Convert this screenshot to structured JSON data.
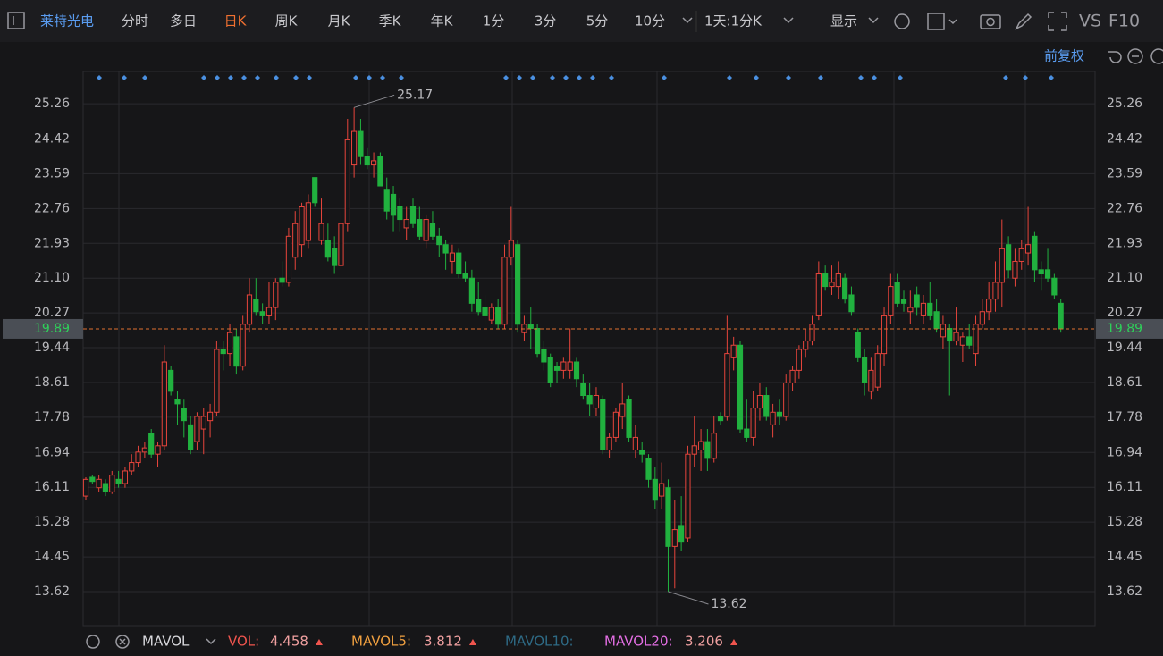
{
  "toolbar": {
    "stock_name": "莱特光电",
    "periods": [
      "分时",
      "多日",
      "日K",
      "周K",
      "月K",
      "季K",
      "年K",
      "1分",
      "3分",
      "5分",
      "10分"
    ],
    "active_period": 2,
    "period_selector": "1天:1分K",
    "display": "显示",
    "vs": "VS",
    "f10": "F10"
  },
  "adjust": "前复权",
  "chart_data": {
    "type": "candlestick",
    "candles": [
      [
        15.9,
        16.35,
        15.8,
        16.3
      ],
      [
        16.35,
        16.4,
        16.2,
        16.25
      ],
      [
        16.1,
        16.4,
        16.0,
        16.3
      ],
      [
        16.2,
        16.3,
        15.9,
        16.0
      ],
      [
        16.0,
        16.5,
        15.95,
        16.4
      ],
      [
        16.3,
        16.5,
        16.1,
        16.2
      ],
      [
        16.2,
        16.6,
        16.1,
        16.5
      ],
      [
        16.5,
        16.9,
        16.4,
        16.7
      ],
      [
        16.7,
        17.1,
        16.6,
        16.95
      ],
      [
        16.95,
        17.2,
        16.8,
        17.05
      ],
      [
        17.4,
        17.5,
        16.8,
        16.9
      ],
      [
        16.9,
        17.2,
        16.6,
        17.1
      ],
      [
        17.1,
        19.5,
        17.0,
        19.1
      ],
      [
        18.9,
        19.0,
        18.3,
        18.4
      ],
      [
        18.2,
        18.4,
        17.6,
        18.1
      ],
      [
        18.0,
        18.2,
        17.3,
        17.7
      ],
      [
        17.6,
        17.8,
        16.9,
        17.0
      ],
      [
        17.2,
        17.9,
        17.0,
        17.8
      ],
      [
        17.5,
        18.0,
        16.9,
        17.8
      ],
      [
        17.7,
        18.1,
        17.3,
        17.9
      ],
      [
        17.9,
        19.6,
        17.8,
        19.4
      ],
      [
        19.4,
        19.6,
        18.9,
        19.3
      ],
      [
        19.3,
        20.0,
        19.0,
        19.8
      ],
      [
        19.7,
        19.9,
        18.8,
        19.0
      ],
      [
        19.0,
        20.2,
        18.9,
        20.0
      ],
      [
        20.0,
        21.1,
        19.8,
        20.7
      ],
      [
        20.6,
        21.1,
        20.2,
        20.3
      ],
      [
        20.3,
        20.5,
        20.0,
        20.2
      ],
      [
        20.2,
        21.0,
        20.0,
        20.4
      ],
      [
        20.4,
        21.1,
        20.1,
        21.0
      ],
      [
        21.1,
        21.5,
        20.9,
        21.0
      ],
      [
        21.0,
        22.3,
        20.9,
        22.1
      ],
      [
        21.6,
        22.7,
        21.3,
        22.4
      ],
      [
        21.9,
        22.9,
        21.6,
        22.8
      ],
      [
        22.0,
        23.1,
        21.8,
        22.9
      ],
      [
        23.5,
        23.5,
        22.8,
        22.9
      ],
      [
        22.0,
        23.0,
        21.9,
        22.4
      ],
      [
        22.0,
        22.4,
        21.5,
        21.6
      ],
      [
        21.8,
        22.1,
        21.2,
        21.4
      ],
      [
        21.4,
        22.7,
        21.3,
        22.4
      ],
      [
        22.4,
        24.9,
        22.2,
        24.4
      ],
      [
        23.8,
        25.17,
        23.5,
        24.6
      ],
      [
        24.6,
        24.9,
        23.8,
        24.0
      ],
      [
        24.0,
        24.2,
        23.7,
        23.8
      ],
      [
        23.8,
        24.1,
        23.5,
        23.9
      ],
      [
        24.0,
        24.1,
        23.3,
        23.3
      ],
      [
        23.2,
        23.5,
        22.5,
        22.7
      ],
      [
        23.1,
        23.3,
        22.2,
        22.6
      ],
      [
        22.8,
        23.0,
        22.2,
        22.5
      ],
      [
        22.3,
        22.8,
        22.0,
        22.5
      ],
      [
        22.8,
        23.0,
        22.3,
        22.4
      ],
      [
        22.5,
        22.8,
        22.0,
        22.1
      ],
      [
        22.0,
        22.6,
        21.8,
        22.5
      ],
      [
        22.4,
        22.7,
        22.0,
        22.1
      ],
      [
        22.1,
        22.3,
        21.6,
        21.9
      ],
      [
        21.9,
        22.0,
        21.3,
        21.7
      ],
      [
        21.5,
        21.9,
        21.2,
        21.7
      ],
      [
        21.7,
        21.8,
        21.1,
        21.2
      ],
      [
        21.2,
        21.5,
        21.0,
        21.1
      ],
      [
        21.1,
        21.3,
        20.3,
        20.5
      ],
      [
        20.6,
        21.0,
        20.2,
        20.3
      ],
      [
        20.4,
        20.7,
        20.0,
        20.2
      ],
      [
        20.1,
        20.5,
        20.0,
        20.4
      ],
      [
        20.4,
        20.6,
        19.9,
        20.0
      ],
      [
        20.0,
        21.9,
        19.9,
        21.6
      ],
      [
        21.6,
        22.8,
        21.4,
        22.0
      ],
      [
        21.9,
        22.0,
        19.8,
        20.0
      ],
      [
        19.8,
        20.2,
        19.6,
        20.0
      ],
      [
        20.0,
        20.4,
        19.4,
        19.9
      ],
      [
        19.9,
        20.0,
        19.2,
        19.3
      ],
      [
        19.4,
        19.6,
        18.9,
        19.1
      ],
      [
        19.2,
        19.3,
        18.5,
        18.6
      ],
      [
        19.0,
        19.1,
        18.6,
        18.9
      ],
      [
        18.9,
        19.2,
        18.7,
        19.1
      ],
      [
        18.9,
        19.9,
        18.7,
        19.1
      ],
      [
        19.1,
        19.2,
        18.5,
        18.7
      ],
      [
        18.6,
        18.8,
        18.2,
        18.3
      ],
      [
        18.3,
        18.6,
        17.8,
        18.1
      ],
      [
        18.0,
        18.5,
        17.8,
        18.3
      ],
      [
        18.2,
        18.3,
        16.9,
        17.0
      ],
      [
        17.0,
        17.4,
        16.8,
        17.3
      ],
      [
        17.3,
        18.0,
        17.2,
        17.9
      ],
      [
        17.8,
        18.6,
        17.5,
        18.1
      ],
      [
        18.2,
        18.3,
        17.2,
        17.3
      ],
      [
        17.0,
        17.6,
        16.8,
        17.3
      ],
      [
        17.0,
        17.2,
        16.7,
        16.9
      ],
      [
        16.8,
        16.9,
        16.1,
        16.3
      ],
      [
        16.3,
        16.6,
        15.6,
        15.8
      ],
      [
        15.9,
        16.7,
        15.6,
        16.2
      ],
      [
        16.1,
        16.3,
        13.62,
        14.7
      ],
      [
        14.7,
        15.8,
        13.7,
        15.1
      ],
      [
        15.2,
        15.9,
        14.6,
        14.8
      ],
      [
        14.9,
        17.1,
        14.8,
        16.9
      ],
      [
        16.9,
        17.8,
        16.6,
        17.1
      ],
      [
        17.0,
        17.5,
        16.5,
        17.2
      ],
      [
        17.2,
        17.5,
        16.5,
        16.8
      ],
      [
        16.8,
        17.8,
        16.7,
        17.4
      ],
      [
        17.8,
        17.9,
        17.6,
        17.7
      ],
      [
        17.8,
        20.2,
        17.7,
        19.3
      ],
      [
        19.2,
        19.7,
        18.9,
        19.5
      ],
      [
        19.5,
        19.6,
        17.4,
        17.5
      ],
      [
        17.5,
        18.2,
        17.2,
        17.3
      ],
      [
        17.3,
        18.4,
        17.1,
        18.0
      ],
      [
        18.0,
        18.6,
        17.7,
        18.3
      ],
      [
        18.3,
        18.5,
        17.7,
        17.8
      ],
      [
        17.6,
        18.1,
        17.3,
        17.9
      ],
      [
        17.9,
        18.2,
        17.6,
        17.8
      ],
      [
        17.8,
        18.8,
        17.7,
        18.6
      ],
      [
        18.6,
        19.0,
        18.4,
        18.9
      ],
      [
        18.9,
        19.5,
        18.7,
        19.4
      ],
      [
        19.4,
        19.9,
        19.2,
        19.6
      ],
      [
        19.6,
        20.2,
        19.5,
        20.0
      ],
      [
        20.2,
        21.5,
        20.1,
        21.2
      ],
      [
        21.2,
        21.4,
        20.8,
        20.9
      ],
      [
        20.9,
        21.4,
        20.7,
        21.0
      ],
      [
        20.9,
        21.5,
        20.6,
        21.2
      ],
      [
        21.1,
        21.2,
        20.5,
        20.6
      ],
      [
        20.7,
        20.9,
        20.2,
        20.3
      ],
      [
        19.8,
        19.9,
        19.1,
        19.2
      ],
      [
        19.2,
        19.4,
        18.3,
        18.6
      ],
      [
        18.4,
        19.2,
        18.2,
        18.9
      ],
      [
        18.5,
        19.5,
        18.4,
        19.3
      ],
      [
        19.3,
        20.4,
        19.0,
        20.2
      ],
      [
        20.2,
        21.2,
        20.0,
        20.9
      ],
      [
        21.0,
        21.2,
        20.4,
        20.5
      ],
      [
        20.6,
        20.8,
        20.3,
        20.5
      ],
      [
        20.3,
        20.8,
        20.0,
        20.4
      ],
      [
        20.7,
        20.9,
        20.2,
        20.4
      ],
      [
        20.2,
        20.7,
        20.0,
        20.5
      ],
      [
        20.5,
        21.0,
        20.1,
        20.2
      ],
      [
        20.3,
        20.6,
        19.8,
        19.9
      ],
      [
        19.7,
        20.2,
        19.4,
        20.0
      ],
      [
        19.9,
        20.0,
        18.3,
        19.6
      ],
      [
        19.6,
        20.4,
        19.5,
        19.8
      ],
      [
        19.5,
        19.8,
        19.1,
        19.7
      ],
      [
        19.7,
        20.0,
        19.4,
        19.5
      ],
      [
        19.3,
        20.2,
        19.0,
        20.0
      ],
      [
        20.0,
        20.6,
        19.9,
        20.3
      ],
      [
        20.3,
        21.0,
        20.1,
        20.6
      ],
      [
        20.6,
        21.5,
        20.3,
        21.0
      ],
      [
        21.0,
        22.5,
        20.4,
        21.8
      ],
      [
        21.9,
        22.1,
        21.1,
        21.3
      ],
      [
        21.1,
        21.8,
        20.9,
        21.5
      ],
      [
        21.5,
        22.0,
        21.3,
        21.8
      ],
      [
        21.7,
        22.8,
        21.4,
        21.9
      ],
      [
        22.1,
        22.2,
        21.0,
        21.3
      ],
      [
        21.3,
        21.5,
        20.8,
        21.2
      ],
      [
        21.3,
        21.8,
        21.0,
        21.1
      ],
      [
        21.1,
        21.2,
        20.6,
        20.7
      ],
      [
        20.5,
        20.6,
        19.8,
        19.89
      ]
    ],
    "up_color": "#e8453c",
    "down_color": "#21b13f",
    "ylim": [
      12.81,
      26.03
    ],
    "yticks": [
      13.62,
      14.45,
      15.28,
      16.11,
      16.94,
      17.78,
      18.61,
      19.44,
      20.27,
      {
        "value": 21.1,
        "label": "21.10"
      },
      21.93,
      22.76,
      23.59,
      24.42,
      25.26
    ],
    "grid": true,
    "current_price": 19.89,
    "annotations": [
      {
        "value": 25.17,
        "kind": "high"
      },
      {
        "value": 13.62,
        "kind": "low"
      }
    ]
  },
  "indicator": {
    "name": "MAVOL",
    "items": [
      {
        "label": "VOL:",
        "value": 4.458,
        "color": "#f0554e"
      },
      {
        "label": "MAVOL5:",
        "value": 3.812,
        "color": "#f0a040"
      },
      {
        "label": "MAVOL10:",
        "color": "#2e6a85"
      },
      {
        "label": "MAVOL20:",
        "value": 3.206,
        "color": "#e36ee3"
      }
    ]
  }
}
